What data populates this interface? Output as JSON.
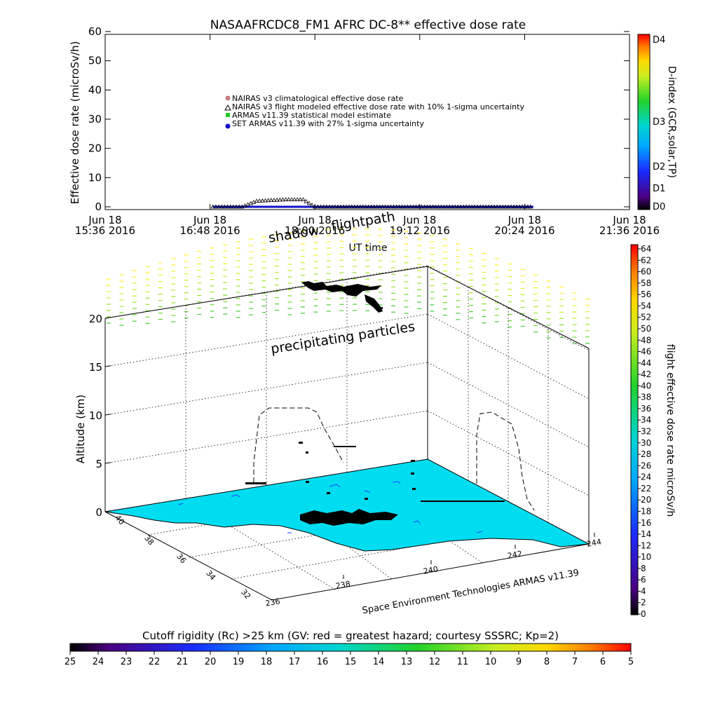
{
  "top_chart": {
    "title": "NASAAFRCDC8_FM1 AFRC DC-8** effective dose rate",
    "ylabel": "Effective dose rate (microSv/h)",
    "xlabel": "UT time",
    "yticks": [
      "0",
      "10",
      "20",
      "30",
      "40",
      "50",
      "60"
    ],
    "xticks": [
      {
        "l1": "Jun 18",
        "l2": "15:36 2016"
      },
      {
        "l1": "Jun 18",
        "l2": "16:48 2016"
      },
      {
        "l1": "Jun 18",
        "l2": "18:00 2016"
      },
      {
        "l1": "Jun 18",
        "l2": "19:12 2016"
      },
      {
        "l1": "Jun 18",
        "l2": "20:24 2016"
      },
      {
        "l1": "Jun 18",
        "l2": "21:36 2016"
      }
    ],
    "legend": [
      {
        "label": "NAIRAS v3 climatological effective dose rate",
        "color": "#e08080",
        "marker": "circle"
      },
      {
        "label": "NAIRAS v3 flight modeled effective dose rate with 10% 1-sigma uncertainty",
        "color": "#000000",
        "marker": "triangle"
      },
      {
        "label": "ARMAS v11.39 statistical model estimate",
        "color": "#22cc22",
        "marker": "square"
      },
      {
        "label": "SET ARMAS v11.39 with 27% 1-sigma uncertainty",
        "color": "#1010cc",
        "marker": "dot"
      }
    ],
    "dindex_label": "D-index (GCR,solar,TP)",
    "dindex_ticks": [
      "D4",
      "D3",
      "D2",
      "D1",
      "D0"
    ]
  },
  "chart_data": {
    "type": "line",
    "title": "NASAAFRCDC8_FM1 AFRC DC-8** effective dose rate",
    "xlabel": "UT time",
    "ylabel": "Effective dose rate (microSv/h)",
    "ylim": [
      0,
      60
    ],
    "x_range": [
      "15:36",
      "21:36"
    ],
    "series": [
      {
        "name": "NAIRAS v3 flight modeled effective dose rate with 10% 1-sigma uncertainty",
        "x": [
          "16:50",
          "17:10",
          "17:20",
          "17:40",
          "17:52",
          "18:00",
          "18:10",
          "20:30"
        ],
        "values": [
          0,
          0,
          2,
          2.5,
          2.5,
          0,
          0,
          0
        ]
      },
      {
        "name": "SET ARMAS v11.39 with 27% 1-sigma uncertainty",
        "x": [
          "16:50",
          "17:30",
          "18:00",
          "19:00",
          "20:00",
          "20:30"
        ],
        "values": [
          0,
          0,
          0,
          0,
          0,
          0
        ]
      }
    ]
  },
  "lower_chart": {
    "annot_flightpath": "flightpath",
    "annot_shadow": "shadow",
    "annot_precip": "precipitating particles",
    "zlabel": "Altitude (km)",
    "zticks": [
      "0",
      "5",
      "10",
      "15",
      "20"
    ],
    "lon_ticks": [
      "238",
      "240",
      "242",
      "244"
    ],
    "lat_ticks": [
      "40",
      "38",
      "36",
      "34",
      "32"
    ],
    "lon_start_label": "236",
    "credit": "Space Environment Technologies ARMAS v11.39",
    "right_cbar_label": "flight effective dose rate microSv/h",
    "right_cbar_ticks": [
      "0",
      "2",
      "4",
      "6",
      "8",
      "10",
      "12",
      "14",
      "16",
      "18",
      "20",
      "22",
      "24",
      "26",
      "28",
      "30",
      "32",
      "34",
      "36",
      "38",
      "40",
      "42",
      "44",
      "46",
      "48",
      "50",
      "52",
      "54",
      "56",
      "58",
      "60",
      "62",
      "64"
    ]
  },
  "bottom_cbar": {
    "label": "Cutoff rigidity (Rc) >25 km (GV: red = greatest hazard; courtesy SSSRC; Kp=2)",
    "ticks": [
      "25",
      "24",
      "23",
      "22",
      "21",
      "20",
      "19",
      "18",
      "17",
      "16",
      "15",
      "14",
      "13",
      "12",
      "11",
      "10",
      "9",
      "8",
      "7",
      "6",
      "5"
    ]
  }
}
